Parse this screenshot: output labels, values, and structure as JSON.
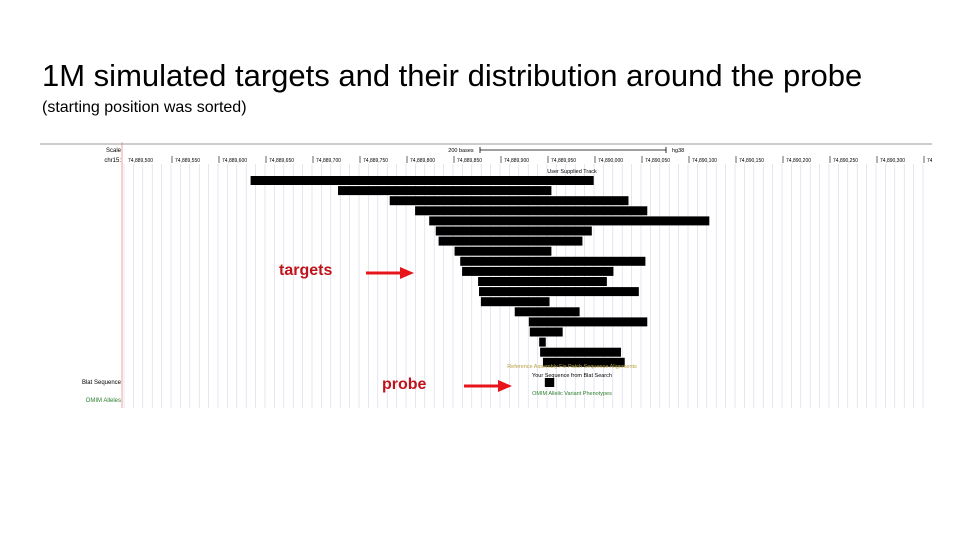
{
  "slide": {
    "title": "1M simulated targets and their distribution around the probe",
    "subtitle": "(starting position was sorted)"
  },
  "browser": {
    "scale_label": "Scale",
    "scale_bar_text": "200 bases",
    "assembly": "hg38",
    "chrom_label": "chr15:",
    "positions": [
      "74,889,500",
      "74,889,550",
      "74,889,600",
      "74,889,650",
      "74,889,700",
      "74,889,750",
      "74,889,800",
      "74,889,850",
      "74,889,900",
      "74,889,950",
      "74,890,000",
      "74,890,050",
      "74,890,100",
      "74,890,150",
      "74,890,200",
      "74,890,250",
      "74,890,300",
      "74"
    ],
    "user_track_title": "User Supplied Track",
    "fix_patch_title": "Reference Assembly Fix Patch Sequence Alignments",
    "blat_label": "Blat Sequence",
    "blat_title": "Your Sequence from Blat Search",
    "omim_label": "OMIM Alleles",
    "omim_title": "OMIM Allelic Variant Phenotypes",
    "colors": {
      "guides": "#d6d6ea",
      "feature": "#000000",
      "omim": "#2e7d2e",
      "fixpatch": "#b8a040",
      "redline": "#f0a0a0"
    },
    "targets": [
      {
        "start": 74889590,
        "end": 74889955
      },
      {
        "start": 74889683,
        "end": 74889910
      },
      {
        "start": 74889738,
        "end": 74889992
      },
      {
        "start": 74889765,
        "end": 74890012
      },
      {
        "start": 74889780,
        "end": 74890078
      },
      {
        "start": 74889787,
        "end": 74889953
      },
      {
        "start": 74889790,
        "end": 74889943
      },
      {
        "start": 74889807,
        "end": 74889910
      },
      {
        "start": 74889813,
        "end": 74890010
      },
      {
        "start": 74889815,
        "end": 74889976
      },
      {
        "start": 74889832,
        "end": 74889969
      },
      {
        "start": 74889833,
        "end": 74890003
      },
      {
        "start": 74889835,
        "end": 74889908
      },
      {
        "start": 74889871,
        "end": 74889940
      },
      {
        "start": 74889886,
        "end": 74890012
      },
      {
        "start": 74889887,
        "end": 74889922
      },
      {
        "start": 74889897,
        "end": 74889904
      },
      {
        "start": 74889898,
        "end": 74889984
      },
      {
        "start": 74889901,
        "end": 74889988
      }
    ],
    "probe": {
      "start": 74889903,
      "end": 74889913
    }
  },
  "annotations": {
    "targets_label": "targets",
    "probe_label": "probe",
    "color": "#e8141c"
  }
}
